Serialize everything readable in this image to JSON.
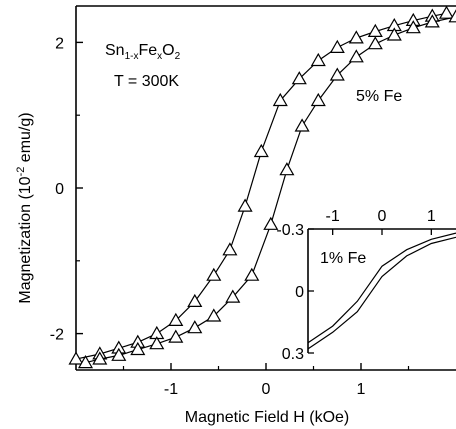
{
  "chart_data": [
    {
      "type": "line",
      "xlabel": "Magnetic Field H (kOe)",
      "ylabel": "Magnetization (10",
      "ylabel_sup": "-2",
      "ylabel_unit": " emu/g)",
      "xlim": [
        -2.0,
        2.0
      ],
      "ylim": [
        -2.5,
        2.5
      ],
      "x_ticks": [
        -1,
        0,
        1
      ],
      "y_ticks": [
        2,
        0,
        -2
      ],
      "marker": "open-triangle",
      "annotations": {
        "composition": {
          "base": "Sn",
          "s1": "1-x",
          "mid": "Fe",
          "s2": "x",
          "tail": "O",
          "s3": "2"
        },
        "temperature": "T = 300K",
        "series_label": "5% Fe"
      },
      "series": [
        {
          "branch": "decreasing-field",
          "x": [
            -2.0,
            -1.75,
            -1.55,
            -1.35,
            -1.15,
            -0.95,
            -0.75,
            -0.55,
            -0.38,
            -0.22,
            -0.05,
            0.15,
            0.35,
            0.55,
            0.75,
            0.95,
            1.15,
            1.35,
            1.55,
            1.75,
            1.9
          ],
          "y": [
            -2.35,
            -2.28,
            -2.2,
            -2.12,
            -2.0,
            -1.82,
            -1.56,
            -1.2,
            -0.85,
            -0.25,
            0.5,
            1.2,
            1.5,
            1.75,
            1.93,
            2.06,
            2.15,
            2.23,
            2.3,
            2.36,
            2.4
          ]
        },
        {
          "branch": "increasing-field",
          "x": [
            -1.9,
            -1.75,
            -1.55,
            -1.35,
            -1.15,
            -0.95,
            -0.75,
            -0.55,
            -0.35,
            -0.15,
            0.05,
            0.22,
            0.38,
            0.55,
            0.75,
            0.95,
            1.15,
            1.35,
            1.55,
            1.75,
            2.0
          ],
          "y": [
            -2.4,
            -2.35,
            -2.3,
            -2.22,
            -2.14,
            -2.05,
            -1.92,
            -1.76,
            -1.5,
            -1.2,
            -0.5,
            0.25,
            0.85,
            1.2,
            1.55,
            1.8,
            1.98,
            2.1,
            2.2,
            2.28,
            2.35
          ]
        }
      ]
    },
    {
      "type": "line",
      "inset": true,
      "xlim": [
        -1.5,
        1.5
      ],
      "ylim": [
        0.3,
        -0.3
      ],
      "x_ticks": [
        -1,
        0,
        1
      ],
      "y_tick_labels": [
        "-0.3",
        "0",
        "0.3"
      ],
      "y_tick_values": [
        -0.3,
        0,
        0.3
      ],
      "annotations": {
        "series_label": "1% Fe"
      },
      "series": [
        {
          "branch": "upper",
          "x": [
            -1.5,
            -1.0,
            -0.5,
            0.0,
            0.5,
            1.0,
            1.5
          ],
          "y": [
            0.25,
            0.17,
            0.05,
            -0.12,
            -0.2,
            -0.25,
            -0.28
          ]
        },
        {
          "branch": "lower",
          "x": [
            -1.5,
            -1.0,
            -0.5,
            0.0,
            0.5,
            1.0,
            1.5
          ],
          "y": [
            0.28,
            0.2,
            0.1,
            -0.07,
            -0.17,
            -0.23,
            -0.26
          ]
        }
      ]
    }
  ]
}
